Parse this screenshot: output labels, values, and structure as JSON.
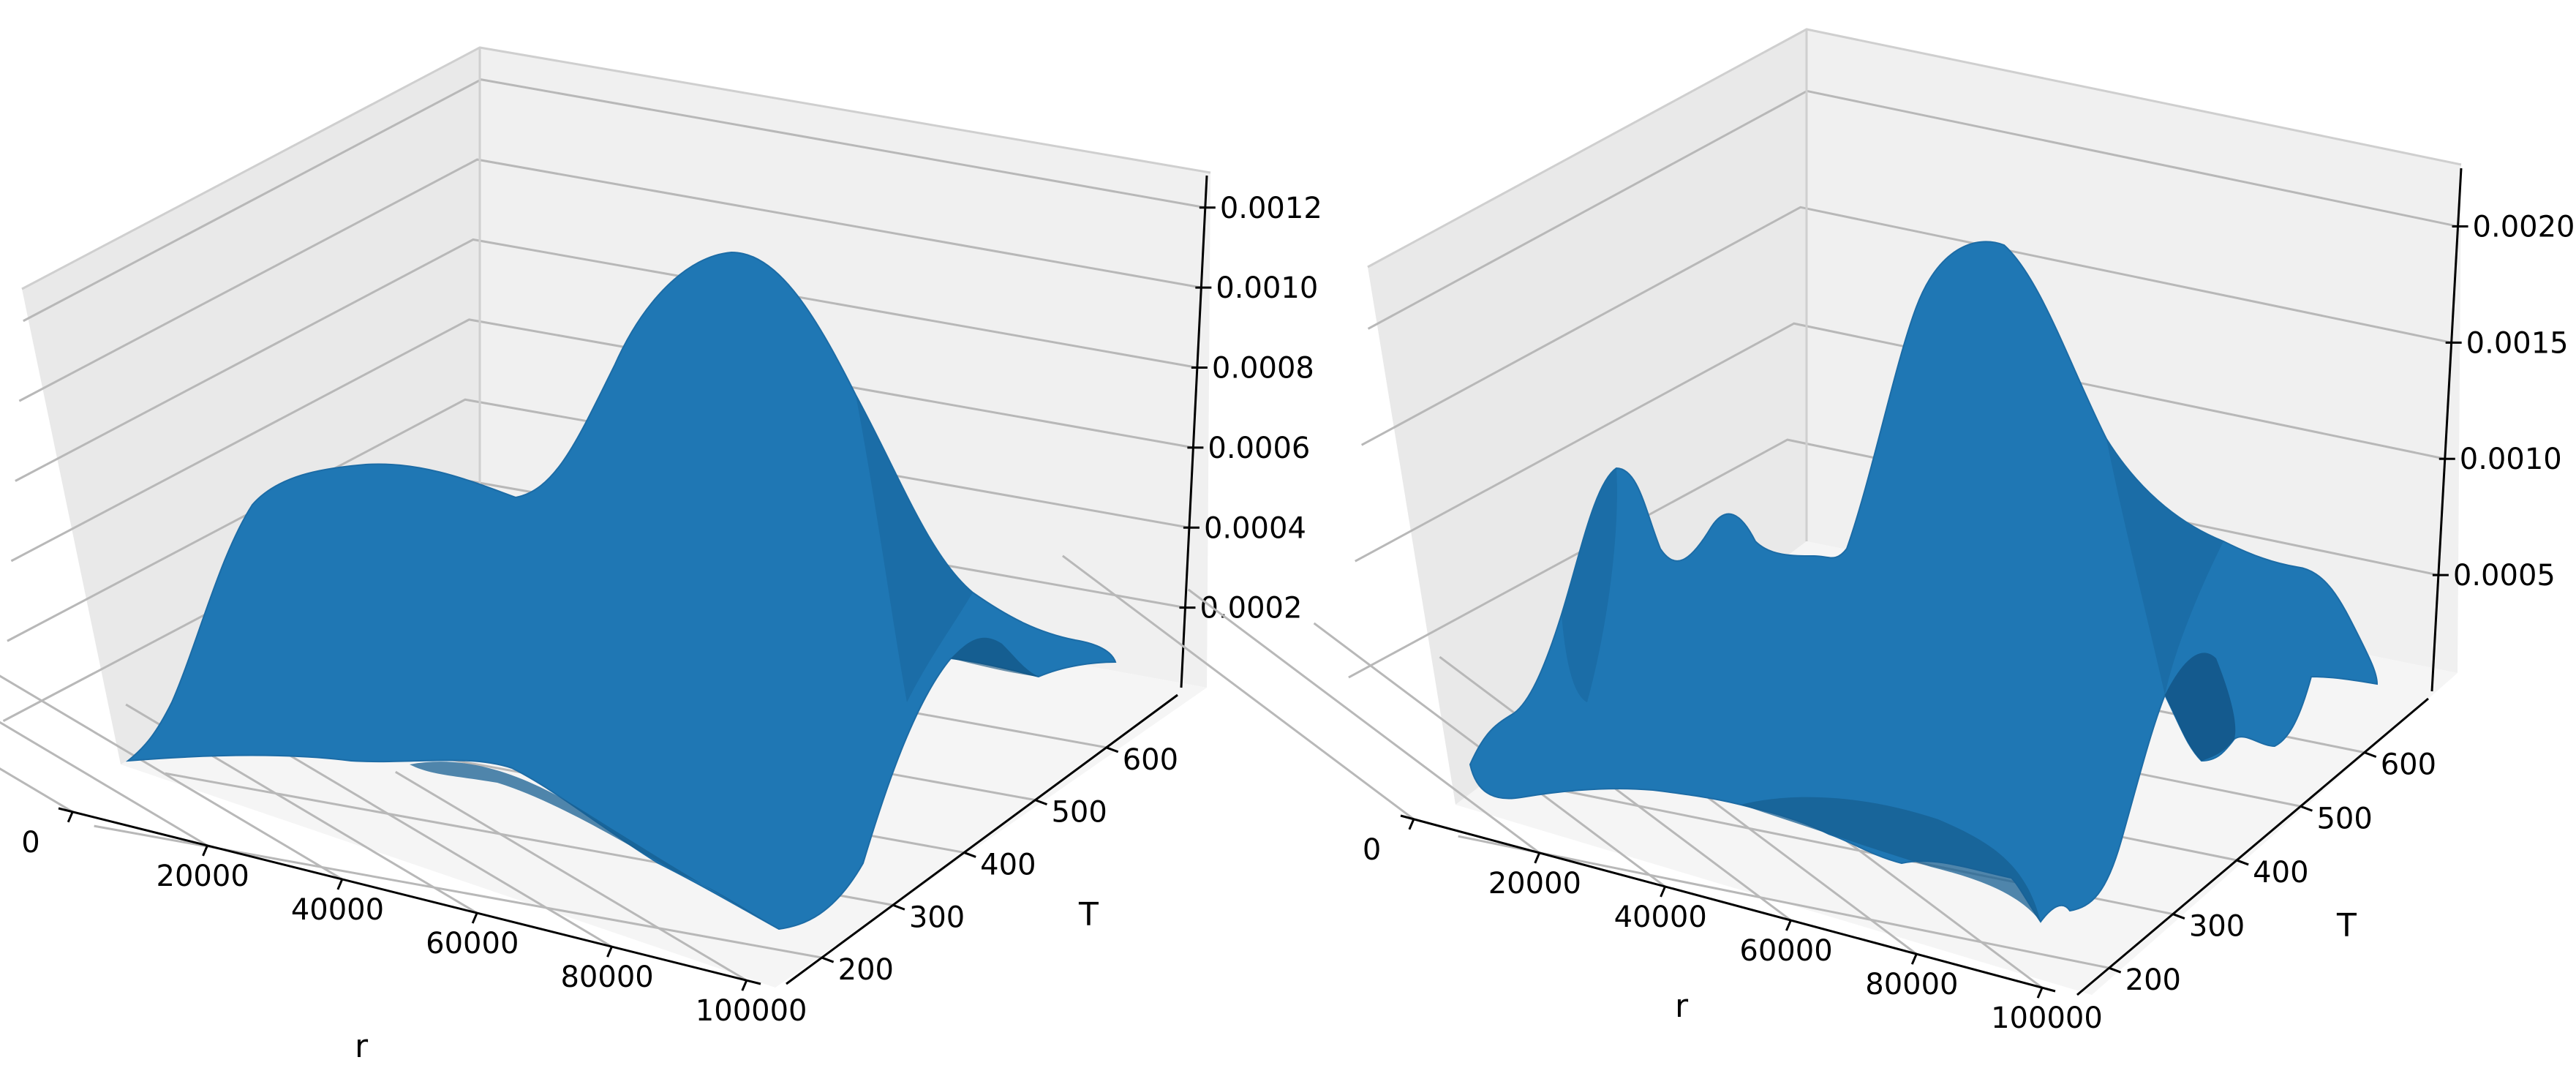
{
  "chart_data": [
    {
      "type": "surface3d",
      "color": "#1f77b4",
      "pane_color": "#f2f2f2",
      "grid_color": "#b0b0b0",
      "grid": true,
      "xlabel": "r",
      "ylabel": "T",
      "zlabel": "",
      "xlim": [
        0,
        100000
      ],
      "ylim": [
        150,
        700
      ],
      "zlim": [
        0,
        0.00128
      ],
      "x_ticks": [
        "0",
        "20000",
        "40000",
        "60000",
        "80000",
        "100000"
      ],
      "y_ticks": [
        "200",
        "300",
        "400",
        "500",
        "600"
      ],
      "z_ticks": [
        "0.0002",
        "0.0004",
        "0.0006",
        "0.0008",
        "0.0010",
        "0.0012"
      ],
      "surface": {
        "r": [
          0,
          10000,
          20000,
          30000,
          40000,
          50000,
          60000,
          70000,
          80000,
          90000,
          100000
        ],
        "T": [
          150,
          250,
          350,
          450,
          550,
          650,
          700
        ],
        "z": [
          [
            2e-05,
            3e-05,
            5e-05,
            6e-05,
            5e-05,
            4e-05,
            6e-05,
            9e-05,
            7e-05,
            2e-05,
            0.0
          ],
          [
            4e-05,
            0.00018,
            0.00025,
            0.0002,
            0.00016,
            0.0002,
            0.0003,
            0.00042,
            0.0003,
            0.0001,
            2e-05
          ],
          [
            6e-05,
            0.0004,
            0.00052,
            0.00048,
            0.00046,
            0.0006,
            0.0008,
            0.0009,
            0.0006,
            0.0002,
            4e-05
          ],
          [
            5e-05,
            0.0005,
            0.0006,
            0.00058,
            0.00062,
            0.00085,
            0.00115,
            0.00122,
            0.0008,
            0.00025,
            5e-05
          ],
          [
            4e-05,
            0.0004,
            0.0005,
            0.0005,
            0.00056,
            0.00078,
            0.001,
            0.001,
            0.0006,
            0.00018,
            4e-05
          ],
          [
            3e-05,
            0.00022,
            0.0003,
            0.0003,
            0.00032,
            0.00045,
            0.00055,
            0.0005,
            0.0003,
            0.0001,
            3e-05
          ],
          [
            2e-05,
            0.0001,
            0.00014,
            0.00014,
            0.00015,
            0.0002,
            0.00025,
            0.00022,
            0.00012,
            6e-05,
            2e-05
          ]
        ]
      }
    },
    {
      "type": "surface3d",
      "color": "#1f77b4",
      "pane_color": "#f2f2f2",
      "grid_color": "#b0b0b0",
      "grid": true,
      "xlabel": "r",
      "ylabel": "T",
      "zlabel": "",
      "xlim": [
        0,
        100000
      ],
      "ylim": [
        150,
        700
      ],
      "zlim": [
        0,
        0.00225
      ],
      "x_ticks": [
        "0",
        "20000",
        "40000",
        "60000",
        "80000",
        "100000"
      ],
      "y_ticks": [
        "200",
        "300",
        "400",
        "500",
        "600"
      ],
      "z_ticks": [
        "0.0005",
        "0.0010",
        "0.0015",
        "0.0020"
      ],
      "surface": {
        "r": [
          0,
          10000,
          20000,
          30000,
          40000,
          50000,
          60000,
          70000,
          80000,
          90000,
          100000
        ],
        "T": [
          150,
          250,
          350,
          450,
          550,
          650,
          700
        ],
        "z": [
          [
            0.0001,
            0.00015,
            5e-05,
            0.00012,
            6e-05,
            0.00014,
            4e-05,
            0.00012,
            5e-05,
            0.0001,
            3e-05
          ],
          [
            0.00015,
            0.0006,
            0.0003,
            0.00045,
            0.00035,
            0.0006,
            0.0005,
            0.0008,
            0.0004,
            0.0003,
            8e-05
          ],
          [
            0.0002,
            0.0012,
            0.0005,
            0.0008,
            0.0007,
            0.001,
            0.0012,
            0.0014,
            0.0006,
            0.0007,
            0.00012
          ],
          [
            0.00015,
            0.0016,
            0.0006,
            0.001,
            0.0009,
            0.0015,
            0.002,
            0.002,
            0.0008,
            0.0009,
            0.0001
          ],
          [
            0.0001,
            0.0011,
            0.0004,
            0.0008,
            0.0007,
            0.0012,
            0.0016,
            0.0015,
            0.0006,
            0.0007,
            8e-05
          ],
          [
            6e-05,
            0.0005,
            0.0002,
            0.0004,
            0.0004,
            0.0006,
            0.0007,
            0.0007,
            0.0003,
            0.0003,
            5e-05
          ],
          [
            4e-05,
            0.0002,
            0.0001,
            0.0002,
            0.0002,
            0.0003,
            0.00035,
            0.0003,
            0.00015,
            0.00012,
            3e-05
          ]
        ]
      }
    }
  ]
}
